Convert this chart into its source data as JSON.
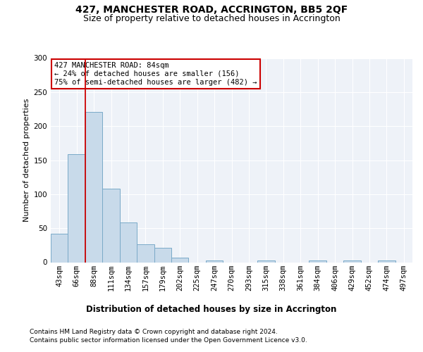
{
  "title1": "427, MANCHESTER ROAD, ACCRINGTON, BB5 2QF",
  "title2": "Size of property relative to detached houses in Accrington",
  "xlabel": "Distribution of detached houses by size in Accrington",
  "ylabel": "Number of detached properties",
  "categories": [
    "43sqm",
    "66sqm",
    "88sqm",
    "111sqm",
    "134sqm",
    "157sqm",
    "179sqm",
    "202sqm",
    "225sqm",
    "247sqm",
    "270sqm",
    "293sqm",
    "315sqm",
    "338sqm",
    "361sqm",
    "384sqm",
    "406sqm",
    "429sqm",
    "452sqm",
    "474sqm",
    "497sqm"
  ],
  "values": [
    42,
    159,
    221,
    108,
    58,
    26,
    21,
    7,
    0,
    3,
    0,
    0,
    3,
    0,
    0,
    3,
    0,
    3,
    0,
    3,
    0
  ],
  "bar_color": "#c8daea",
  "bar_edge_color": "#7aaac8",
  "vline_color": "#cc0000",
  "annotation_text": "427 MANCHESTER ROAD: 84sqm\n← 24% of detached houses are smaller (156)\n75% of semi-detached houses are larger (482) →",
  "annotation_box_color": "#ffffff",
  "annotation_box_edge_color": "#cc0000",
  "ylim": [
    0,
    300
  ],
  "yticks": [
    0,
    50,
    100,
    150,
    200,
    250,
    300
  ],
  "footer1": "Contains HM Land Registry data © Crown copyright and database right 2024.",
  "footer2": "Contains public sector information licensed under the Open Government Licence v3.0.",
  "bg_color": "#ffffff",
  "plot_bg_color": "#eef2f8",
  "title1_fontsize": 10,
  "title2_fontsize": 9,
  "xlabel_fontsize": 8.5,
  "ylabel_fontsize": 8,
  "tick_fontsize": 7.5,
  "footer_fontsize": 6.5,
  "ann_fontsize": 7.5
}
